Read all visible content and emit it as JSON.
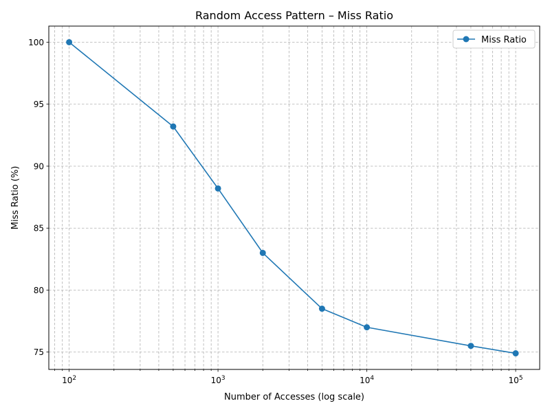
{
  "chart_data": {
    "type": "line",
    "title": "Random Access Pattern – Miss Ratio",
    "xlabel": "Number of Accesses (log scale)",
    "ylabel": "Miss Ratio (%)",
    "xscale": "log",
    "xlim": [
      73,
      145000
    ],
    "ylim": [
      73.6,
      101.3
    ],
    "x_ticks": [
      {
        "value": 100,
        "base": "10",
        "exp": "2"
      },
      {
        "value": 1000,
        "base": "10",
        "exp": "3"
      },
      {
        "value": 10000,
        "base": "10",
        "exp": "4"
      },
      {
        "value": 100000,
        "base": "10",
        "exp": "5"
      }
    ],
    "y_ticks": [
      75,
      80,
      85,
      90,
      95,
      100
    ],
    "grid": true,
    "legend_position": "top-right",
    "series": [
      {
        "name": "Miss Ratio",
        "color": "#1f77b4",
        "marker": "circle",
        "x": [
          100,
          500,
          1000,
          2000,
          5000,
          10000,
          50000,
          100000
        ],
        "y": [
          100.0,
          93.2,
          88.2,
          83.0,
          78.5,
          77.0,
          75.5,
          74.9
        ]
      }
    ]
  }
}
